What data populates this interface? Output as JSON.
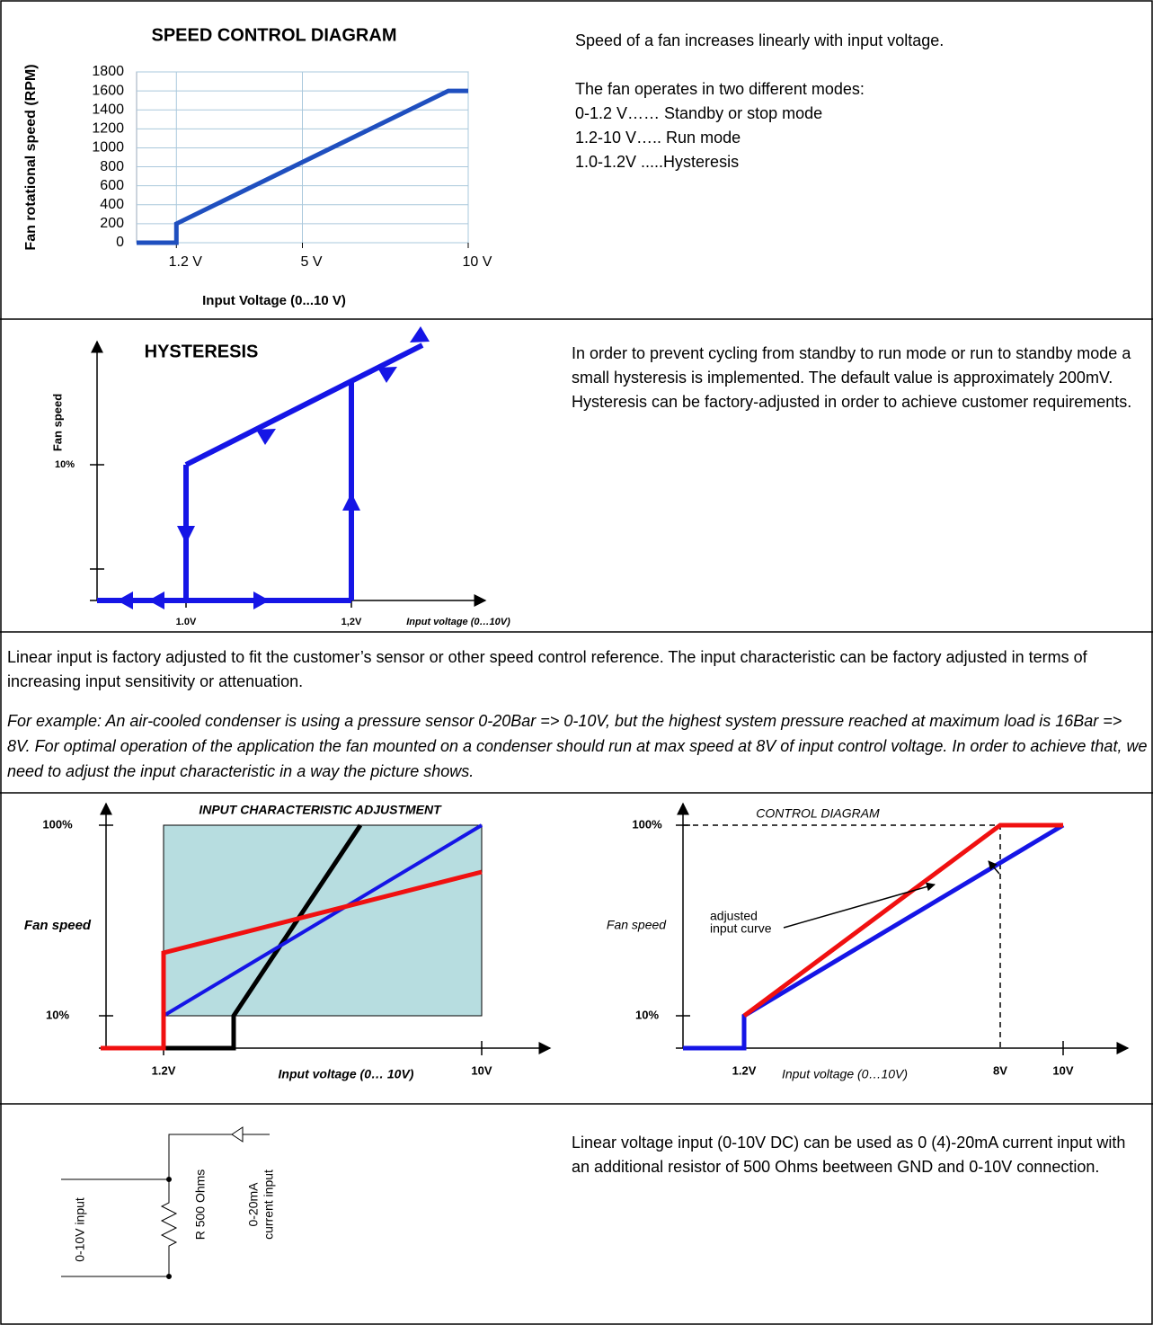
{
  "chart_data": {
    "type": "line",
    "title": "SPEED CONTROL DIAGRAM",
    "y_label": "Fan rotational speed (RPM)",
    "x_label": "Input Voltage (0...10 V)",
    "x": [
      0,
      1.2,
      1.2,
      9.4,
      10
    ],
    "values": [
      0,
      0,
      200,
      1600,
      1600
    ],
    "color": "#1f4fbf",
    "xlim": [
      0,
      10
    ],
    "ylim": [
      0,
      1800
    ],
    "xticks": [
      {
        "value": 1.2,
        "label": "1.2 V"
      },
      {
        "value": 5,
        "label": "5 V"
      },
      {
        "value": 10,
        "label": "10 V"
      }
    ],
    "yticks": [
      0,
      200,
      400,
      600,
      800,
      1000,
      1200,
      1400,
      1600,
      1800
    ],
    "grid": true
  },
  "document": {
    "speed_text": [
      "Speed of a fan increases linearly with input voltage.",
      "The fan operates in two different modes:",
      "0-1.2 V…… Standby or stop mode",
      "1.2-10 V….. Run mode",
      "1.0-1.2V .....Hysteresis"
    ],
    "hysteresis": {
      "title": "HYSTERESIS",
      "y_label": "Fan speed",
      "y_tick": "10%",
      "x_ticks": [
        "1.0V",
        "1,2V"
      ],
      "x_label": "Input voltage (0…10V)",
      "text": [
        "In order to prevent cycling from standby to run mode or run to standby mode a small hysteresis is implemented. The default value is approximately 200mV.",
        "Hysteresis can be factory-adjusted in order to achieve customer requirements."
      ]
    },
    "linear_input": {
      "text": "Linear input is factory adjusted to fit the customer’s sensor or other speed control reference. The input characteristic can be factory adjusted in terms of increasing input sensitivity or attenuation.",
      "example": "For example: An air-cooled condenser is using a pressure sensor 0-20Bar => 0-10V, but the highest system pressure reached at maximum load is 16Bar => 8V. For optimal operation of the application the fan mounted on a condenser should run at max speed at 8V of input control voltage. In order to achieve that, we need to adjust the input characteristic in a way the picture shows."
    },
    "input_adjustment": {
      "title": "INPUT CHARACTERISTIC ADJUSTMENT",
      "y_label": "Fan speed",
      "y_ticks": [
        "100%",
        "10%"
      ],
      "x_ticks": [
        "1.2V",
        "10V"
      ],
      "x_label": "Input voltage (0… 10V)"
    },
    "control_diagram": {
      "title": "CONTROL DIAGRAM",
      "y_label": "Fan speed",
      "y_ticks": [
        "100%",
        "10%"
      ],
      "x_ticks": [
        "1.2V",
        "8V",
        "10V"
      ],
      "x_label": "Input voltage (0…10V)",
      "annotation": [
        "adjusted",
        "input curve"
      ]
    },
    "current_input": {
      "labels": [
        "0-10V input",
        "R 500 Ohms",
        "0-20mA",
        "current input"
      ],
      "text": "Linear voltage input (0-10V DC) can be used as 0 (4)-20mA current input with an additional resistor of 500 Ohms beetween GND and 0-10V connection."
    }
  }
}
